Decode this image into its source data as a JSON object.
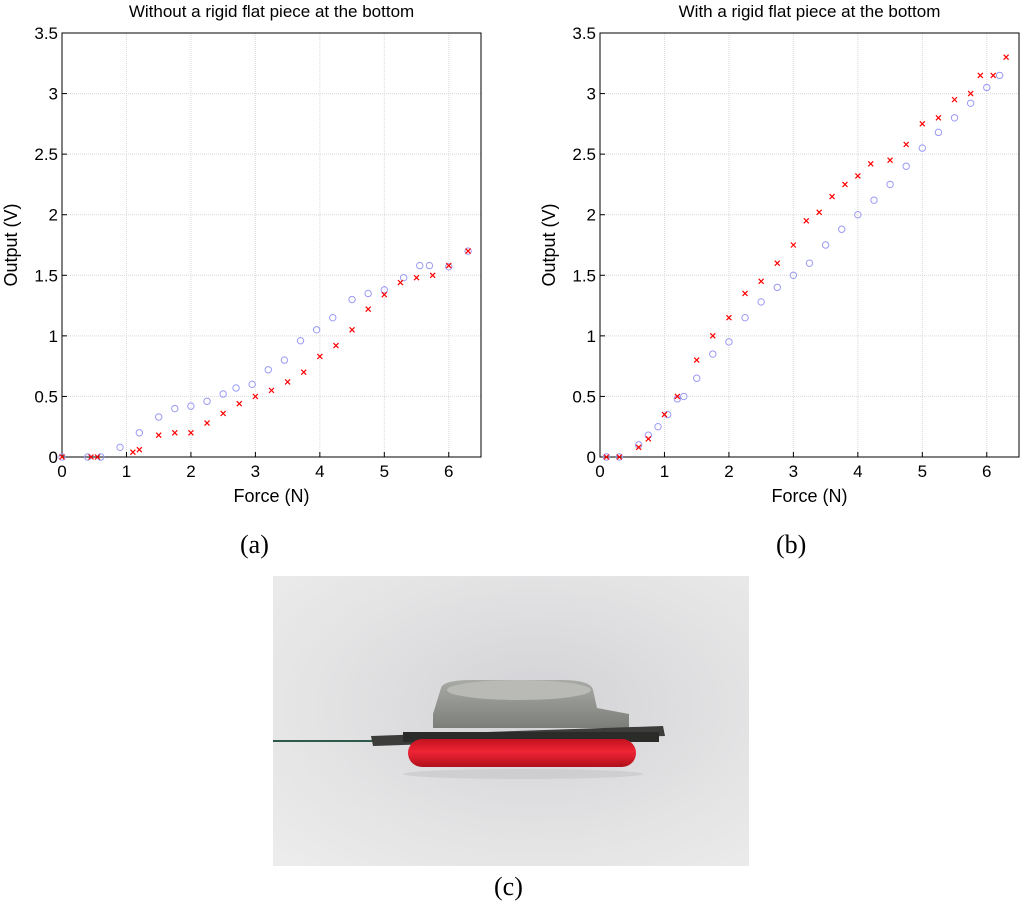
{
  "chart_data": [
    {
      "type": "scatter",
      "title": "Without a rigid flat piece at the bottom",
      "xlabel": "Force (N)",
      "ylabel": "Output (V)",
      "xlim": [
        0,
        6.5
      ],
      "ylim": [
        0,
        3.5
      ],
      "xticks": [
        "0",
        "1",
        "2",
        "3",
        "4",
        "5",
        "6"
      ],
      "yticks": [
        "0",
        "0.5",
        "1",
        "1.5",
        "2",
        "2.5",
        "3",
        "3.5"
      ],
      "grid": true,
      "series": [
        {
          "marker": "circle",
          "color": "#9a9af5",
          "points": [
            [
              0.0,
              0.0
            ],
            [
              0.4,
              0.0
            ],
            [
              0.6,
              0.0
            ],
            [
              0.9,
              0.08
            ],
            [
              1.2,
              0.2
            ],
            [
              1.5,
              0.33
            ],
            [
              1.75,
              0.4
            ],
            [
              2.0,
              0.42
            ],
            [
              2.25,
              0.46
            ],
            [
              2.5,
              0.52
            ],
            [
              2.7,
              0.57
            ],
            [
              2.95,
              0.6
            ],
            [
              3.2,
              0.72
            ],
            [
              3.45,
              0.8
            ],
            [
              3.7,
              0.96
            ],
            [
              3.95,
              1.05
            ],
            [
              4.2,
              1.15
            ],
            [
              4.5,
              1.3
            ],
            [
              4.75,
              1.35
            ],
            [
              5.0,
              1.38
            ],
            [
              5.3,
              1.48
            ],
            [
              5.55,
              1.58
            ],
            [
              5.7,
              1.58
            ],
            [
              6.0,
              1.57
            ],
            [
              6.3,
              1.7
            ]
          ]
        },
        {
          "marker": "cross",
          "color": "#ff0000",
          "points": [
            [
              0.0,
              0.0
            ],
            [
              0.45,
              0.0
            ],
            [
              0.55,
              0.0
            ],
            [
              1.1,
              0.04
            ],
            [
              1.2,
              0.06
            ],
            [
              1.5,
              0.18
            ],
            [
              1.75,
              0.2
            ],
            [
              2.0,
              0.2
            ],
            [
              2.25,
              0.28
            ],
            [
              2.5,
              0.36
            ],
            [
              2.75,
              0.44
            ],
            [
              3.0,
              0.5
            ],
            [
              3.25,
              0.55
            ],
            [
              3.5,
              0.62
            ],
            [
              3.75,
              0.7
            ],
            [
              4.0,
              0.83
            ],
            [
              4.25,
              0.92
            ],
            [
              4.5,
              1.05
            ],
            [
              4.75,
              1.22
            ],
            [
              5.0,
              1.34
            ],
            [
              5.25,
              1.44
            ],
            [
              5.5,
              1.48
            ],
            [
              5.75,
              1.5
            ],
            [
              6.0,
              1.58
            ],
            [
              6.3,
              1.7
            ]
          ]
        }
      ]
    },
    {
      "type": "scatter",
      "title": "With a rigid flat piece at the bottom",
      "xlabel": "Force (N)",
      "ylabel": "Output (V)",
      "xlim": [
        0,
        6.5
      ],
      "ylim": [
        0,
        3.5
      ],
      "xticks": [
        "0",
        "1",
        "2",
        "3",
        "4",
        "5",
        "6"
      ],
      "yticks": [
        "0",
        "0.5",
        "1",
        "1.5",
        "2",
        "2.5",
        "3",
        "3.5"
      ],
      "grid": true,
      "series": [
        {
          "marker": "circle",
          "color": "#9a9af5",
          "points": [
            [
              0.1,
              0.0
            ],
            [
              0.3,
              0.0
            ],
            [
              0.6,
              0.1
            ],
            [
              0.75,
              0.18
            ],
            [
              0.9,
              0.25
            ],
            [
              1.05,
              0.35
            ],
            [
              1.2,
              0.48
            ],
            [
              1.3,
              0.5
            ],
            [
              1.5,
              0.65
            ],
            [
              1.75,
              0.85
            ],
            [
              2.0,
              0.95
            ],
            [
              2.25,
              1.15
            ],
            [
              2.5,
              1.28
            ],
            [
              2.75,
              1.4
            ],
            [
              3.0,
              1.5
            ],
            [
              3.25,
              1.6
            ],
            [
              3.5,
              1.75
            ],
            [
              3.75,
              1.88
            ],
            [
              4.0,
              2.0
            ],
            [
              4.25,
              2.12
            ],
            [
              4.5,
              2.25
            ],
            [
              4.75,
              2.4
            ],
            [
              5.0,
              2.55
            ],
            [
              5.25,
              2.68
            ],
            [
              5.5,
              2.8
            ],
            [
              5.75,
              2.92
            ],
            [
              6.0,
              3.05
            ],
            [
              6.2,
              3.15
            ]
          ]
        },
        {
          "marker": "cross",
          "color": "#ff0000",
          "points": [
            [
              0.1,
              0.0
            ],
            [
              0.3,
              0.0
            ],
            [
              0.6,
              0.08
            ],
            [
              0.75,
              0.15
            ],
            [
              1.0,
              0.35
            ],
            [
              1.2,
              0.5
            ],
            [
              1.5,
              0.8
            ],
            [
              1.75,
              1.0
            ],
            [
              2.0,
              1.15
            ],
            [
              2.25,
              1.35
            ],
            [
              2.5,
              1.45
            ],
            [
              2.75,
              1.6
            ],
            [
              3.0,
              1.75
            ],
            [
              3.2,
              1.95
            ],
            [
              3.4,
              2.02
            ],
            [
              3.6,
              2.15
            ],
            [
              3.8,
              2.25
            ],
            [
              4.0,
              2.32
            ],
            [
              4.2,
              2.42
            ],
            [
              4.5,
              2.45
            ],
            [
              4.75,
              2.58
            ],
            [
              5.0,
              2.75
            ],
            [
              5.25,
              2.8
            ],
            [
              5.5,
              2.95
            ],
            [
              5.75,
              3.0
            ],
            [
              5.9,
              3.15
            ],
            [
              6.1,
              3.15
            ],
            [
              6.3,
              3.3
            ]
          ]
        }
      ]
    }
  ],
  "panel_labels": {
    "a": "(a)",
    "b": "(b)",
    "c": "(c)"
  },
  "photo": {
    "colors": {
      "background": "#e2e2e3",
      "cap": "#9a9c96",
      "disc": "#e11a2c",
      "wire": "#2f5a4a"
    }
  }
}
